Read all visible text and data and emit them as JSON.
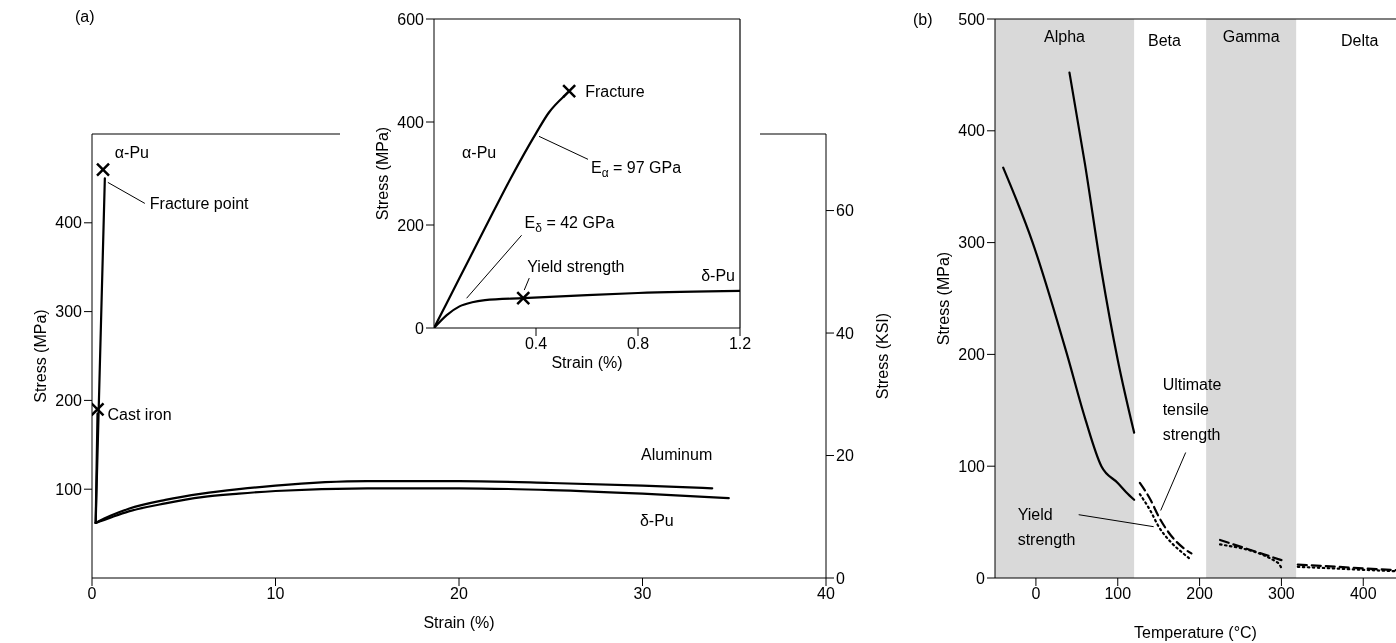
{
  "chart_data": [
    {
      "type": "line",
      "xlabel": "Strain (%)",
      "ylabel": "Stress (MPa)",
      "y2label": "Stress (KSI)",
      "xlim": [
        0,
        40
      ],
      "xticks": [
        0,
        10,
        20,
        30,
        40
      ],
      "ylim": [
        0,
        500
      ],
      "yticks": [
        100,
        200,
        300,
        400
      ],
      "y2lim": [
        0,
        72.5
      ],
      "y2ticks": [
        0,
        20,
        40,
        60
      ],
      "marker": "none",
      "series": [
        {
          "name": "α-Pu",
          "color": "#000000",
          "x": [
            0.2,
            0.7
          ],
          "values": [
            62,
            450
          ]
        },
        {
          "name": "Cast iron",
          "color": "#000000",
          "x": [
            0.2,
            0.3
          ],
          "values": [
            62,
            185
          ]
        },
        {
          "name": "Aluminum",
          "color": "#000000",
          "x": [
            0.2,
            1,
            2,
            4,
            6,
            8,
            10,
            15,
            20,
            25,
            30,
            33.8
          ],
          "values": [
            62,
            70,
            78,
            88,
            95,
            100,
            104,
            109,
            109,
            107,
            104,
            101
          ]
        },
        {
          "name": "δ-Pu",
          "color": "#000000",
          "x": [
            0.2,
            1,
            2,
            4,
            6,
            8,
            10,
            15,
            20,
            25,
            30,
            34.7
          ],
          "values": [
            62,
            68,
            75,
            84,
            91,
            95,
            98,
            101,
            101,
            99,
            95,
            90
          ]
        },
        {
          "type": "scatter",
          "marker": "cross",
          "color": "#000000",
          "x": [
            0.6,
            0.3
          ],
          "values": [
            460,
            190
          ]
        }
      ],
      "annotations": [
        "(a)",
        {
          "text": "Fracture point",
          "x": 0.7,
          "y": 450
        }
      ]
    },
    {
      "type": "line",
      "xlabel": "Strain (%)",
      "ylabel": "Stress (MPa)",
      "xlim": [
        0,
        1.2
      ],
      "xticks": [
        0.4,
        0.8,
        1.2
      ],
      "ylim": [
        0,
        600
      ],
      "yticks": [
        0,
        200,
        400,
        600
      ],
      "marker": "none",
      "series": [
        {
          "name": "α-Pu",
          "color": "#000000",
          "x": [
            0,
            0.1,
            0.2,
            0.3,
            0.4,
            0.45,
            0.51
          ],
          "values": [
            0,
            97,
            194,
            290,
            378,
            418,
            450
          ]
        },
        {
          "name": "δ-Pu",
          "color": "#000000",
          "x": [
            0,
            0.05,
            0.1,
            0.15,
            0.2,
            0.35,
            0.6,
            0.8,
            1.2
          ],
          "values": [
            0,
            25,
            42,
            50,
            54,
            58,
            64,
            68,
            72
          ]
        },
        {
          "type": "scatter",
          "marker": "cross",
          "color": "#000000",
          "x": [
            0.53,
            0.35
          ],
          "values": [
            460,
            58
          ]
        }
      ],
      "annotations": [
        {
          "text": "Fracture",
          "x": 0.53,
          "y": 460
        },
        {
          "text": "E$_{α}$ = 97 GPa",
          "x": 0.4,
          "y": 378
        },
        {
          "text": "E$_{δ}$ = 42 GPa",
          "x": 0.12,
          "y": 50
        },
        {
          "text": "Yield strength",
          "x": 0.35,
          "y": 62
        }
      ]
    },
    {
      "type": "line",
      "xlabel": "Temperature (°C)",
      "ylabel": "Stress (MPa)",
      "xlim": [
        -50,
        440
      ],
      "xticks": [
        0,
        100,
        200,
        300,
        400
      ],
      "ylim": [
        0,
        500
      ],
      "yticks": [
        0,
        100,
        200,
        300,
        400,
        500
      ],
      "marker": "none",
      "bands": [
        {
          "axis": "x",
          "from": -50,
          "to": 120,
          "label": "Alpha",
          "color": "#d9d9d9"
        },
        {
          "axis": "x",
          "from": 208,
          "to": 318,
          "label": "Gamma",
          "color": "#d9d9d9"
        }
      ],
      "series": [
        {
          "color": "#000000",
          "line_style": "solid",
          "x": [
            -40,
            -4,
            38,
            60,
            80,
            100,
            110,
            120
          ],
          "values": [
            367,
            300,
            200,
            143,
            100,
            85,
            77,
            70
          ]
        },
        {
          "color": "#000000",
          "line_style": "solid",
          "x": [
            41,
            60,
            80,
            100,
            120
          ],
          "values": [
            452,
            370,
            275,
            195,
            130
          ]
        },
        {
          "color": "#000000",
          "line_style": "dashed",
          "x": [
            127,
            140,
            150,
            165,
            180,
            190,
            207,
            225,
            300,
            318,
            320,
            440
          ],
          "values": [
            85,
            70,
            55,
            38,
            27,
            22,
            null,
            34,
            16,
            null,
            12,
            7
          ]
        },
        {
          "color": "#000000",
          "line_style": "dotted",
          "x": [
            127,
            140,
            150,
            165,
            180,
            190,
            207,
            225,
            295,
            300,
            318,
            320,
            440
          ],
          "values": [
            75,
            60,
            46,
            32,
            22,
            16,
            null,
            30,
            14,
            9,
            null,
            10,
            6
          ]
        }
      ],
      "annotations": [
        "(b)",
        "Beta",
        "Delta",
        {
          "text": "Ultimate tensile strength",
          "x": 150,
          "y": 55
        },
        {
          "text": "Yield strength",
          "x": 150,
          "y": 45
        }
      ]
    }
  ]
}
